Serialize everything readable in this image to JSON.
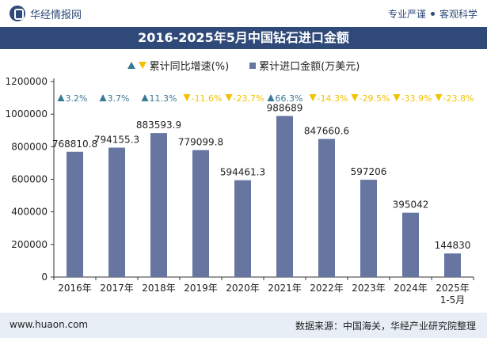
{
  "header": {
    "brand": "华经情报网",
    "right_a": "专业严谨",
    "right_b": "客观科学"
  },
  "title": "2016-2025年5月中国钻石进口金额",
  "legend": {
    "growth": "累计同比增速(%)",
    "amount": "累计进口金额(万美元)"
  },
  "footer": {
    "left": "www.huaon.com",
    "right": "数据来源：中国海关，华经产业研究院整理"
  },
  "colors": {
    "bar": "#6676a0",
    "up": "#3a7a94",
    "down": "#f2c100",
    "title_bg": "#2f4a79"
  },
  "chart_data": {
    "type": "bar",
    "categories": [
      "2016年",
      "2017年",
      "2018年",
      "2019年",
      "2020年",
      "2021年",
      "2022年",
      "2023年",
      "2024年",
      "2025年\n1-5月"
    ],
    "series": [
      {
        "name": "累计进口金额(万美元)",
        "values": [
          768810.8,
          794155.3,
          883593.9,
          779099.8,
          594461.3,
          988689,
          847660.6,
          597206,
          395042,
          144830
        ]
      },
      {
        "name": "累计同比增速(%)",
        "values": [
          3.2,
          3.7,
          11.3,
          -11.6,
          -23.7,
          66.3,
          -14.3,
          -29.5,
          -33.9,
          -23.8
        ]
      }
    ],
    "value_labels": [
      "768810.8",
      "794155.3",
      "883593.9",
      "779099.8",
      "594461.3",
      "988689",
      "847660.6",
      "597206",
      "395042",
      "144830"
    ],
    "growth_labels": [
      "3.2%",
      "3.7%",
      "11.3%",
      "-11.6%",
      "-23.7%",
      "66.3%",
      "-14.3%",
      "-29.5%",
      "-33.9%",
      "-23.8%"
    ],
    "yticks": [
      "0",
      "200000",
      "400000",
      "600000",
      "800000",
      "1000000",
      "1200000"
    ],
    "ylim": [
      0,
      1200000
    ],
    "grid": false
  }
}
